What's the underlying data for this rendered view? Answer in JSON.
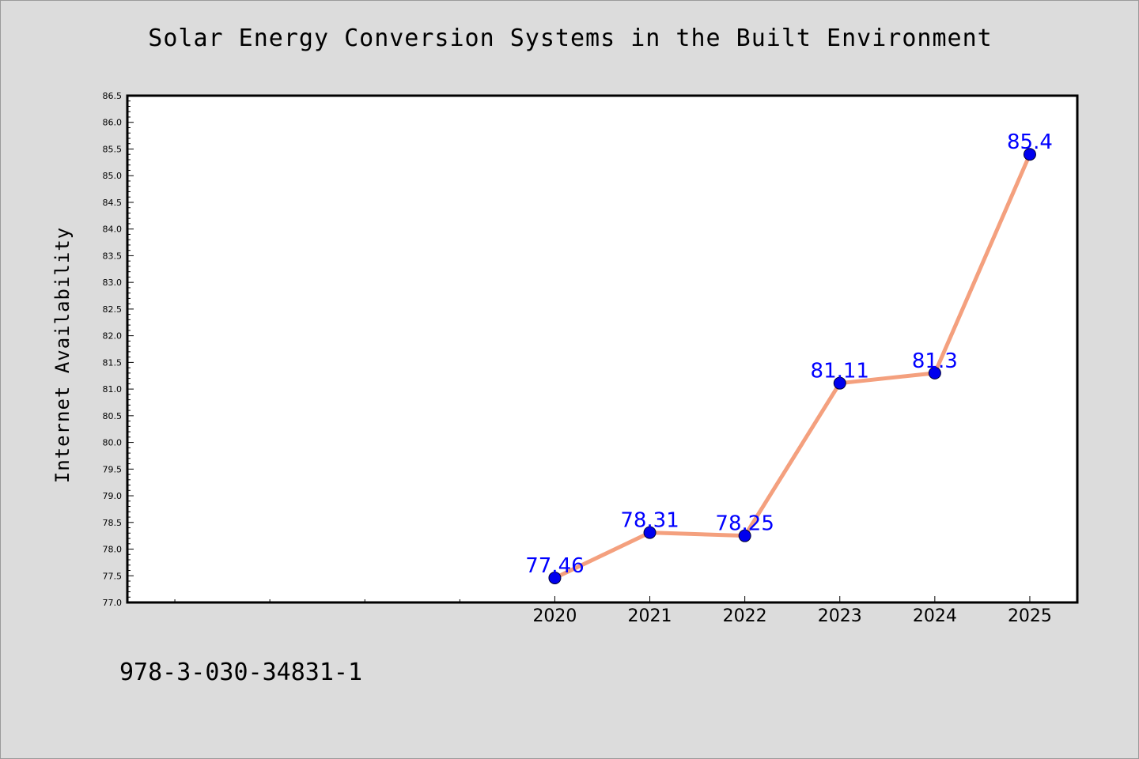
{
  "chart_data": {
    "type": "line",
    "title": "Solar Energy Conversion Systems in the Built Environment",
    "xlabel": "",
    "ylabel": "Internet Availability",
    "x": [
      2020,
      2021,
      2022,
      2023,
      2024,
      2025
    ],
    "data_labels": [
      "77.46",
      "78.31",
      "78.25",
      "81.11",
      "81.3",
      "85.4"
    ],
    "series": [
      {
        "values": [
          77.46,
          78.31,
          78.25,
          81.11,
          81.3,
          85.4
        ],
        "line_color": "#f4a07e",
        "marker_color": "#0000ee",
        "label_color": "#0000ff"
      }
    ],
    "xlim": [
      2015.5,
      2025.5
    ],
    "ylim": [
      77.0,
      86.5
    ],
    "y_ticks": [
      "77.0",
      "77.5",
      "78.0",
      "78.5",
      "79.0",
      "79.5",
      "80.0",
      "80.5",
      "81.0",
      "81.5",
      "82.0",
      "82.5",
      "83.0",
      "83.5",
      "84.0",
      "84.5",
      "85.0",
      "85.5",
      "86.0",
      "86.5"
    ],
    "x_ticks": [
      "2020",
      "2021",
      "2022",
      "2023",
      "2024",
      "2025"
    ],
    "grid": false,
    "legend": "none"
  },
  "footer_text": "978-3-030-34831-1"
}
